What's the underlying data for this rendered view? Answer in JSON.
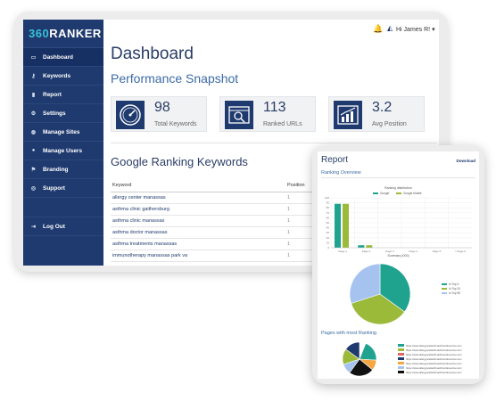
{
  "colors": {
    "sidebar": "#1f3a6e",
    "accent": "#38c1d8",
    "teal": "#1fa38f",
    "olive": "#9bba3a",
    "lightblue": "#a6c3f0"
  },
  "brand": {
    "part1": "360",
    "part2": "RANKER"
  },
  "sidebar": {
    "items": [
      {
        "label": "Dashboard",
        "icon": "dashboard-icon"
      },
      {
        "label": "Keywords",
        "icon": "key-icon"
      },
      {
        "label": "Report",
        "icon": "bar-chart-icon"
      },
      {
        "label": "Settings",
        "icon": "gear-icon"
      },
      {
        "label": "Manage Sites",
        "icon": "globe-icon"
      },
      {
        "label": "Manage Users",
        "icon": "users-icon"
      },
      {
        "label": "Branding",
        "icon": "flag-icon"
      },
      {
        "label": "Support",
        "icon": "support-icon"
      }
    ],
    "logout": "Log Out"
  },
  "header": {
    "user": "Hi James R!"
  },
  "main": {
    "title": "Dashboard",
    "snapshot_title": "Performance Snapshot",
    "stats": [
      {
        "value": "98",
        "label": "Total Keywords"
      },
      {
        "value": "113",
        "label": "Ranked URLs"
      },
      {
        "value": "3.2",
        "label": "Avg Position"
      }
    ],
    "ranking_title": "Google Ranking Keywords",
    "table": {
      "columns": [
        "Keyword",
        "Position"
      ],
      "rows": [
        [
          "allergy center manassas",
          "1"
        ],
        [
          "asthma clinic gaithersburg",
          "1"
        ],
        [
          "asthma clinic manassas",
          "1"
        ],
        [
          "asthma doctor manassas",
          "1"
        ],
        [
          "asthma treatments manassas",
          "1"
        ],
        [
          "immunotherapy manassas park va",
          "1"
        ]
      ]
    }
  },
  "report": {
    "title": "Report",
    "download": "Download",
    "overview": "Ranking Overview",
    "pages_title": "Pages with most Ranking",
    "url_prefix": "https://www.allergyandasthmaclinicofamerica.com/"
  },
  "chart_data": [
    {
      "type": "bar",
      "title": "Ranking distribution",
      "categories": [
        "Page 1",
        "Page 2",
        "Page 3",
        "Page 4",
        "Page 5",
        "> Page 6"
      ],
      "series": [
        {
          "name": "Google",
          "values": [
            88,
            5,
            0,
            0,
            0,
            0
          ]
        },
        {
          "name": "Google Mobile",
          "values": [
            88,
            5,
            0,
            0,
            0,
            0
          ]
        }
      ],
      "ylim": [
        0,
        100
      ],
      "yticks": [
        0,
        10,
        20,
        30,
        40,
        50,
        60,
        70,
        80,
        90,
        100
      ],
      "legend": "top"
    },
    {
      "type": "pie",
      "title": "Summary (000)",
      "labels": [
        "In Top 3",
        "In Top 10",
        "In Top 50"
      ],
      "values": [
        35,
        35,
        30
      ],
      "legend": "right"
    },
    {
      "type": "pie",
      "labels": [
        "url-1",
        "url-2",
        "url-3",
        "url-4",
        "url-5",
        "url-6",
        "url-7"
      ],
      "values": [
        6,
        20,
        10,
        24,
        10,
        15,
        15
      ],
      "legend": "right"
    }
  ]
}
